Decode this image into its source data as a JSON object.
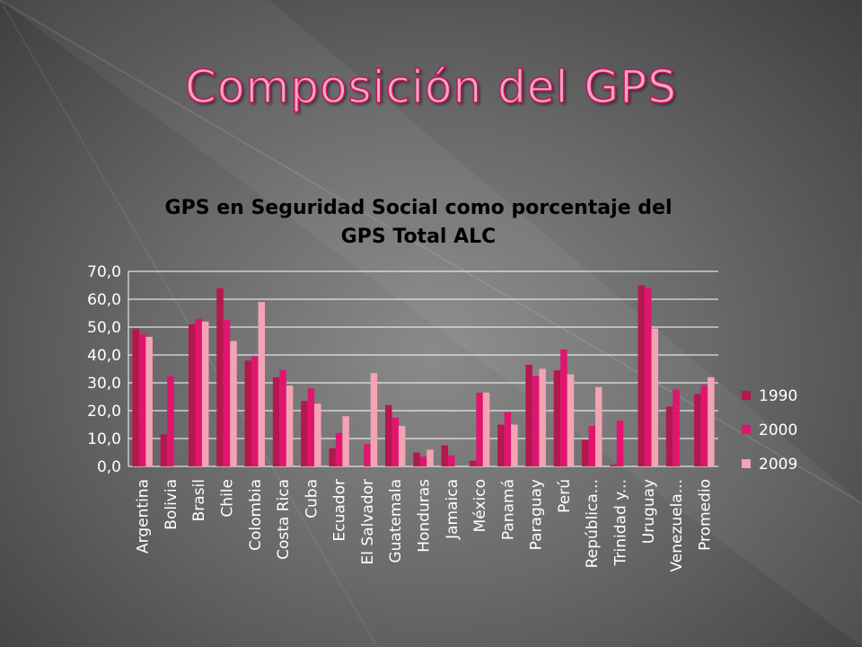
{
  "slide": {
    "title": "Composición del GPS"
  },
  "chart_data": {
    "type": "bar",
    "title_lines": [
      "GPS en Seguridad Social como porcentaje del",
      "GPS Total ALC"
    ],
    "xlabel": "",
    "ylabel": "",
    "ylim": [
      0,
      70
    ],
    "yticks": [
      "0,0",
      "10,0",
      "20,0",
      "30,0",
      "40,0",
      "50,0",
      "60,0",
      "70,0"
    ],
    "grid": true,
    "legend_position": "right",
    "categories": [
      "Argentina",
      "Bolivia",
      "Brasil",
      "Chile",
      "Colombia",
      "Costa Rica",
      "Cuba",
      "Ecuador",
      "El Salvador",
      "Guatemala",
      "Honduras",
      "Jamaica",
      "México",
      "Panamá",
      "Paraguay",
      "Perú",
      "República...",
      "Trinidad y...",
      "Uruguay",
      "Venezuela...",
      "Promedio"
    ],
    "series": [
      {
        "name": "1990",
        "color": "#b5174f",
        "values": [
          49.5,
          11.5,
          51,
          64,
          38,
          32,
          23.5,
          6.5,
          0,
          22,
          5,
          7.5,
          2,
          15,
          36.5,
          34.5,
          9.5,
          0.5,
          65,
          21.5,
          26
        ]
      },
      {
        "name": "2000",
        "color": "#e0156f",
        "values": [
          47.5,
          32.5,
          53,
          52.5,
          39.5,
          34.5,
          28,
          12,
          8,
          17.5,
          3.5,
          4,
          26.5,
          19.5,
          32.5,
          42,
          14.5,
          16.5,
          64,
          27.5,
          29
        ]
      },
      {
        "name": "2009",
        "color": "#f4a3b4",
        "values": [
          46.5,
          0,
          52,
          45,
          59,
          29,
          22.5,
          18,
          33.5,
          14.5,
          6,
          0,
          26.5,
          15,
          35,
          33,
          28.5,
          0,
          49.5,
          0,
          32
        ]
      }
    ]
  }
}
